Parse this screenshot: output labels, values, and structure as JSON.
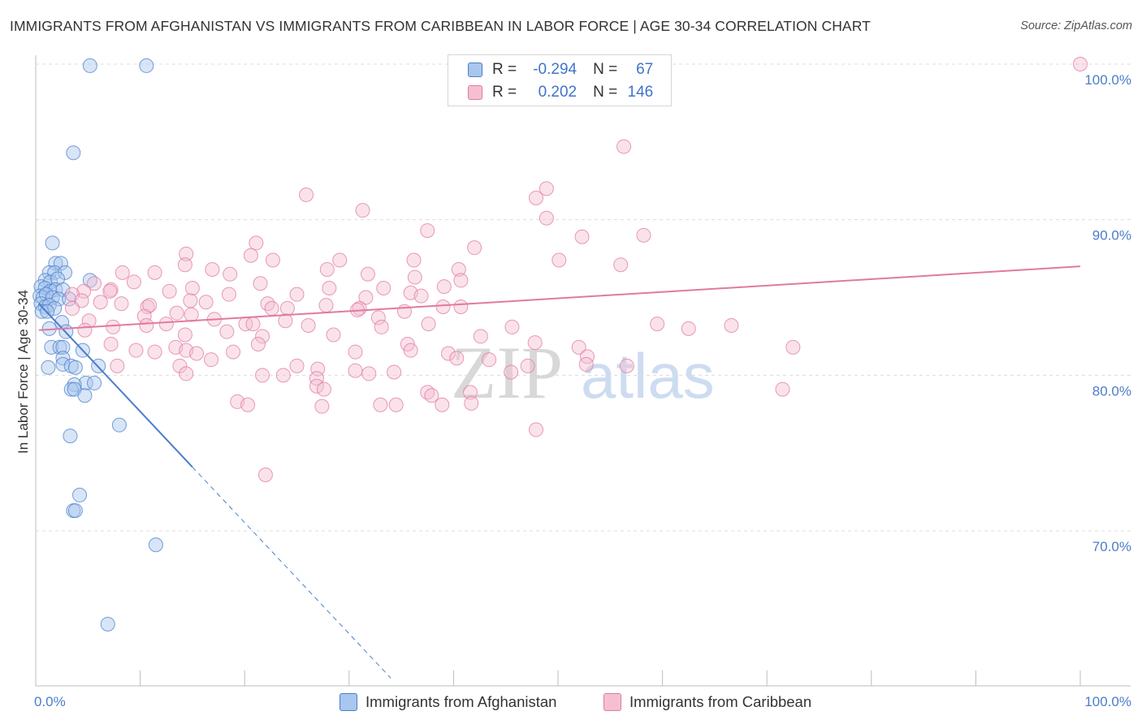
{
  "title": "IMMIGRANTS FROM AFGHANISTAN VS IMMIGRANTS FROM CARIBBEAN IN LABOR FORCE | AGE 30-34 CORRELATION CHART",
  "source": "Source: ZipAtlas.com",
  "watermark": {
    "zip": "ZIP",
    "atlas": "atlas"
  },
  "legend": {
    "rows": [
      {
        "r_label": "R =",
        "r_value": "-0.294",
        "n_label": "N =",
        "n_value": "67"
      },
      {
        "r_label": "R =",
        "r_value": "0.202",
        "n_label": "N =",
        "n_value": "146"
      }
    ]
  },
  "bottom_legend": [
    "Immigrants from Afghanistan",
    "Immigrants from Caribbean"
  ],
  "chart_data": {
    "type": "scatter",
    "xlabel": "",
    "ylabel": "In Labor Force | Age 30-34",
    "xlim": [
      0,
      100
    ],
    "ylim": [
      60,
      100
    ],
    "x_tick_labels": [
      "0.0%",
      "100.0%"
    ],
    "y_ticks": [
      70,
      80,
      90,
      100
    ],
    "y_tick_labels": [
      "70.0%",
      "80.0%",
      "90.0%",
      "100.0%"
    ],
    "grid": "horizontal dashed",
    "legend_position": "top-center",
    "colors": {
      "afghanistan": "#4a7ec9",
      "afghanistan_fill": "#a9c6ee",
      "caribbean": "#e07aa0",
      "caribbean_fill": "#f5bfd2"
    },
    "series": [
      {
        "name": "Immigrants from Afghanistan",
        "r": -0.294,
        "n": 67,
        "trend": {
          "x0": 0.3,
          "y0": 84.6,
          "x1": 15.0,
          "y1": 74.1,
          "dash_to_x": 34.0
        },
        "points": [
          [
            5.2,
            99.9
          ],
          [
            10.6,
            99.9
          ],
          [
            3.6,
            94.3
          ],
          [
            1.6,
            88.5
          ],
          [
            1.9,
            87.2
          ],
          [
            2.4,
            87.2
          ],
          [
            1.3,
            86.6
          ],
          [
            1.8,
            86.6
          ],
          [
            2.8,
            86.6
          ],
          [
            0.9,
            86.1
          ],
          [
            1.4,
            86.0
          ],
          [
            2.1,
            86.2
          ],
          [
            5.2,
            86.1
          ],
          [
            0.5,
            85.7
          ],
          [
            0.9,
            85.6
          ],
          [
            1.4,
            85.4
          ],
          [
            1.9,
            85.5
          ],
          [
            2.6,
            85.5
          ],
          [
            0.4,
            85.1
          ],
          [
            0.7,
            85.0
          ],
          [
            1.0,
            85.2
          ],
          [
            1.6,
            85.0
          ],
          [
            2.2,
            84.9
          ],
          [
            3.2,
            84.9
          ],
          [
            0.5,
            84.6
          ],
          [
            0.9,
            84.4
          ],
          [
            1.3,
            84.5
          ],
          [
            1.8,
            84.3
          ],
          [
            0.6,
            84.1
          ],
          [
            1.1,
            84.1
          ],
          [
            2.5,
            83.4
          ],
          [
            1.3,
            83.0
          ],
          [
            2.9,
            82.8
          ],
          [
            1.5,
            81.8
          ],
          [
            2.3,
            81.8
          ],
          [
            2.6,
            81.8
          ],
          [
            4.5,
            81.6
          ],
          [
            2.6,
            81.1
          ],
          [
            1.2,
            80.5
          ],
          [
            2.6,
            80.7
          ],
          [
            3.4,
            80.6
          ],
          [
            3.8,
            80.5
          ],
          [
            6.0,
            80.6
          ],
          [
            4.8,
            79.5
          ],
          [
            3.7,
            79.4
          ],
          [
            5.6,
            79.5
          ],
          [
            3.4,
            79.1
          ],
          [
            3.7,
            79.1
          ],
          [
            4.7,
            78.7
          ],
          [
            8.0,
            76.8
          ],
          [
            3.3,
            76.1
          ],
          [
            4.2,
            72.3
          ],
          [
            3.6,
            71.3
          ],
          [
            3.8,
            71.3
          ],
          [
            11.5,
            69.1
          ],
          [
            6.9,
            64.0
          ]
        ]
      },
      {
        "name": "Immigrants from Caribbean",
        "r": 0.202,
        "n": 146,
        "trend": {
          "x0": 0.3,
          "y0": 82.9,
          "x1": 100.0,
          "y1": 87.0
        },
        "points": [
          [
            100.0,
            100.0
          ],
          [
            56.3,
            94.7
          ],
          [
            25.9,
            91.6
          ],
          [
            31.3,
            90.6
          ],
          [
            47.9,
            91.4
          ],
          [
            48.9,
            92.0
          ],
          [
            48.9,
            90.1
          ],
          [
            37.5,
            89.3
          ],
          [
            52.3,
            88.9
          ],
          [
            58.2,
            89.0
          ],
          [
            21.1,
            88.5
          ],
          [
            42.0,
            88.2
          ],
          [
            14.4,
            87.8
          ],
          [
            20.6,
            87.7
          ],
          [
            36.2,
            87.4
          ],
          [
            22.7,
            87.4
          ],
          [
            29.1,
            87.4
          ],
          [
            50.1,
            87.4
          ],
          [
            56.0,
            87.1
          ],
          [
            14.3,
            87.1
          ],
          [
            16.9,
            86.8
          ],
          [
            27.9,
            86.8
          ],
          [
            8.3,
            86.6
          ],
          [
            11.4,
            86.6
          ],
          [
            40.5,
            86.8
          ],
          [
            18.6,
            86.5
          ],
          [
            31.8,
            86.5
          ],
          [
            36.3,
            86.3
          ],
          [
            40.7,
            86.1
          ],
          [
            5.6,
            85.9
          ],
          [
            9.4,
            86.0
          ],
          [
            15.0,
            85.6
          ],
          [
            21.5,
            85.9
          ],
          [
            7.2,
            85.5
          ],
          [
            28.1,
            85.6
          ],
          [
            33.3,
            85.6
          ],
          [
            39.1,
            85.7
          ],
          [
            4.6,
            85.4
          ],
          [
            7.1,
            85.4
          ],
          [
            3.5,
            85.2
          ],
          [
            12.8,
            85.4
          ],
          [
            18.5,
            85.2
          ],
          [
            25.0,
            85.2
          ],
          [
            31.6,
            85.0
          ],
          [
            35.9,
            85.3
          ],
          [
            36.9,
            85.1
          ],
          [
            4.4,
            84.8
          ],
          [
            6.2,
            84.7
          ],
          [
            8.2,
            84.6
          ],
          [
            10.7,
            84.4
          ],
          [
            14.8,
            84.8
          ],
          [
            16.3,
            84.7
          ],
          [
            22.2,
            84.6
          ],
          [
            27.8,
            84.5
          ],
          [
            31.0,
            84.3
          ],
          [
            3.5,
            84.3
          ],
          [
            10.9,
            84.5
          ],
          [
            13.5,
            84.0
          ],
          [
            22.6,
            84.3
          ],
          [
            24.1,
            84.3
          ],
          [
            30.8,
            84.2
          ],
          [
            35.3,
            84.1
          ],
          [
            39.0,
            84.4
          ],
          [
            40.7,
            84.4
          ],
          [
            14.9,
            83.9
          ],
          [
            5.1,
            83.5
          ],
          [
            10.4,
            83.8
          ],
          [
            17.1,
            83.6
          ],
          [
            23.9,
            83.5
          ],
          [
            32.8,
            83.7
          ],
          [
            37.6,
            83.3
          ],
          [
            7.4,
            83.1
          ],
          [
            10.6,
            83.2
          ],
          [
            12.5,
            83.3
          ],
          [
            20.1,
            83.3
          ],
          [
            20.8,
            83.3
          ],
          [
            26.1,
            83.2
          ],
          [
            33.1,
            83.1
          ],
          [
            45.6,
            83.1
          ],
          [
            59.5,
            83.3
          ],
          [
            66.6,
            83.2
          ],
          [
            62.5,
            83.0
          ],
          [
            4.7,
            82.9
          ],
          [
            14.3,
            82.6
          ],
          [
            18.3,
            82.8
          ],
          [
            21.7,
            82.5
          ],
          [
            28.5,
            82.6
          ],
          [
            42.6,
            82.5
          ],
          [
            47.8,
            82.1
          ],
          [
            7.2,
            82.0
          ],
          [
            21.3,
            82.0
          ],
          [
            13.4,
            81.8
          ],
          [
            14.4,
            81.6
          ],
          [
            35.6,
            82.0
          ],
          [
            52.0,
            81.8
          ],
          [
            72.5,
            81.8
          ],
          [
            9.6,
            81.6
          ],
          [
            11.4,
            81.5
          ],
          [
            15.4,
            81.4
          ],
          [
            18.9,
            81.5
          ],
          [
            30.6,
            81.5
          ],
          [
            35.9,
            81.6
          ],
          [
            39.5,
            81.4
          ],
          [
            40.3,
            81.1
          ],
          [
            52.8,
            81.2
          ],
          [
            16.8,
            81.0
          ],
          [
            43.4,
            81.0
          ],
          [
            47.1,
            80.6
          ],
          [
            7.8,
            80.6
          ],
          [
            13.8,
            80.6
          ],
          [
            25.0,
            80.6
          ],
          [
            27.0,
            80.4
          ],
          [
            30.6,
            80.3
          ],
          [
            31.9,
            80.1
          ],
          [
            34.3,
            80.2
          ],
          [
            52.7,
            80.7
          ],
          [
            56.6,
            80.6
          ],
          [
            14.4,
            80.1
          ],
          [
            26.9,
            79.8
          ],
          [
            45.5,
            80.2
          ],
          [
            21.7,
            80.0
          ],
          [
            23.7,
            80.0
          ],
          [
            26.9,
            79.3
          ],
          [
            27.6,
            79.1
          ],
          [
            37.5,
            78.9
          ],
          [
            37.9,
            78.7
          ],
          [
            41.6,
            78.9
          ],
          [
            71.5,
            79.1
          ],
          [
            19.3,
            78.3
          ],
          [
            20.3,
            78.1
          ],
          [
            27.4,
            78.0
          ],
          [
            33.0,
            78.1
          ],
          [
            34.5,
            78.1
          ],
          [
            38.9,
            78.1
          ],
          [
            41.7,
            78.2
          ],
          [
            47.9,
            76.5
          ],
          [
            22.0,
            73.6
          ]
        ]
      }
    ]
  }
}
